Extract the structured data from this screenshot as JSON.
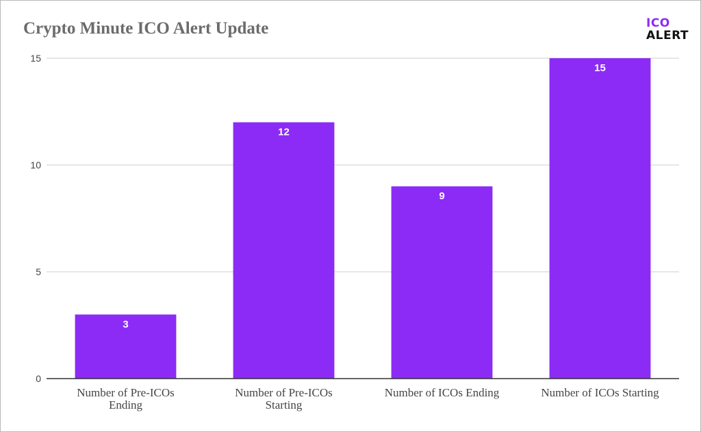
{
  "chart_data": {
    "type": "bar",
    "title": "Crypto Minute ICO Alert Update",
    "categories": [
      [
        "Number of Pre-ICOs",
        "Ending"
      ],
      [
        "Number of Pre-ICOs",
        "Starting"
      ],
      [
        "Number of ICOs Ending"
      ],
      [
        "Number of ICOs Starting"
      ]
    ],
    "values": [
      3,
      12,
      9,
      15
    ],
    "data_labels": [
      "3",
      "12",
      "9",
      "15"
    ],
    "ylim": [
      0,
      15
    ],
    "yticks": [
      0,
      5,
      10,
      15
    ],
    "grid": true,
    "legend": "none",
    "bar_color": "#8c2bf5",
    "xlabel": "",
    "ylabel": ""
  },
  "logo": {
    "line1": "ICO",
    "line2": "ALERT"
  },
  "colors": {
    "bar": "#8c2bf5",
    "grid": "#cccccc",
    "axis": "#333333",
    "title": "#6b6b6b"
  }
}
